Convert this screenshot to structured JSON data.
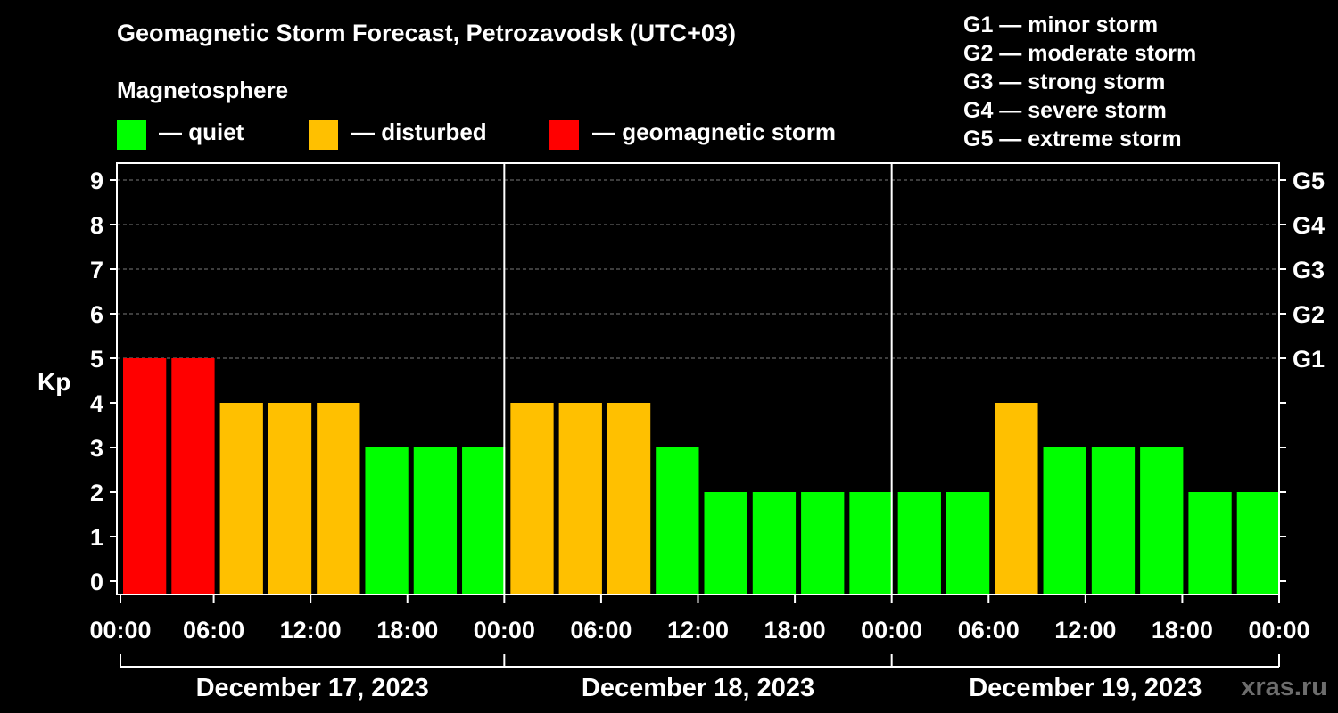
{
  "chart_data": {
    "type": "bar",
    "title": "Geomagnetic Storm Forecast, Petrozavodsk (UTC+03)",
    "subtitle": "Magnetosphere",
    "ylabel": "Kp",
    "ylim": [
      0,
      9
    ],
    "y_ticks": [
      "0",
      "1",
      "2",
      "3",
      "4",
      "5",
      "6",
      "7",
      "8",
      "9"
    ],
    "g_ticks": [
      {
        "kp": 5,
        "label": "G1"
      },
      {
        "kp": 6,
        "label": "G2"
      },
      {
        "kp": 7,
        "label": "G3"
      },
      {
        "kp": 8,
        "label": "G4"
      },
      {
        "kp": 9,
        "label": "G5"
      }
    ],
    "x_tick_labels": [
      "00:00",
      "06:00",
      "12:00",
      "18:00",
      "00:00",
      "06:00",
      "12:00",
      "18:00",
      "00:00",
      "06:00",
      "12:00",
      "18:00",
      "00:00"
    ],
    "days": [
      "December 17, 2023",
      "December 18, 2023",
      "December 19, 2023"
    ],
    "interval_hours": 3,
    "values": [
      5,
      5,
      4,
      4,
      4,
      3,
      3,
      3,
      4,
      4,
      4,
      3,
      2,
      2,
      2,
      2,
      2,
      2,
      4,
      3,
      3,
      3,
      2,
      2
    ],
    "status": [
      "storm",
      "storm",
      "disturbed",
      "disturbed",
      "disturbed",
      "quiet",
      "quiet",
      "quiet",
      "disturbed",
      "disturbed",
      "disturbed",
      "quiet",
      "quiet",
      "quiet",
      "quiet",
      "quiet",
      "quiet",
      "quiet",
      "disturbed",
      "quiet",
      "quiet",
      "quiet",
      "quiet",
      "quiet"
    ],
    "legend": [
      {
        "key": "quiet",
        "label": "— quiet",
        "color": "#00ff00"
      },
      {
        "key": "disturbed",
        "label": "— disturbed",
        "color": "#ffc000"
      },
      {
        "key": "storm",
        "label": "— geomagnetic storm",
        "color": "#ff0000"
      }
    ],
    "g_scale": [
      "G1 — minor storm",
      "G2 — moderate storm",
      "G3 — strong storm",
      "G4 — severe storm",
      "G5 — extreme storm"
    ],
    "grid": true
  },
  "watermark": "xras.ru"
}
